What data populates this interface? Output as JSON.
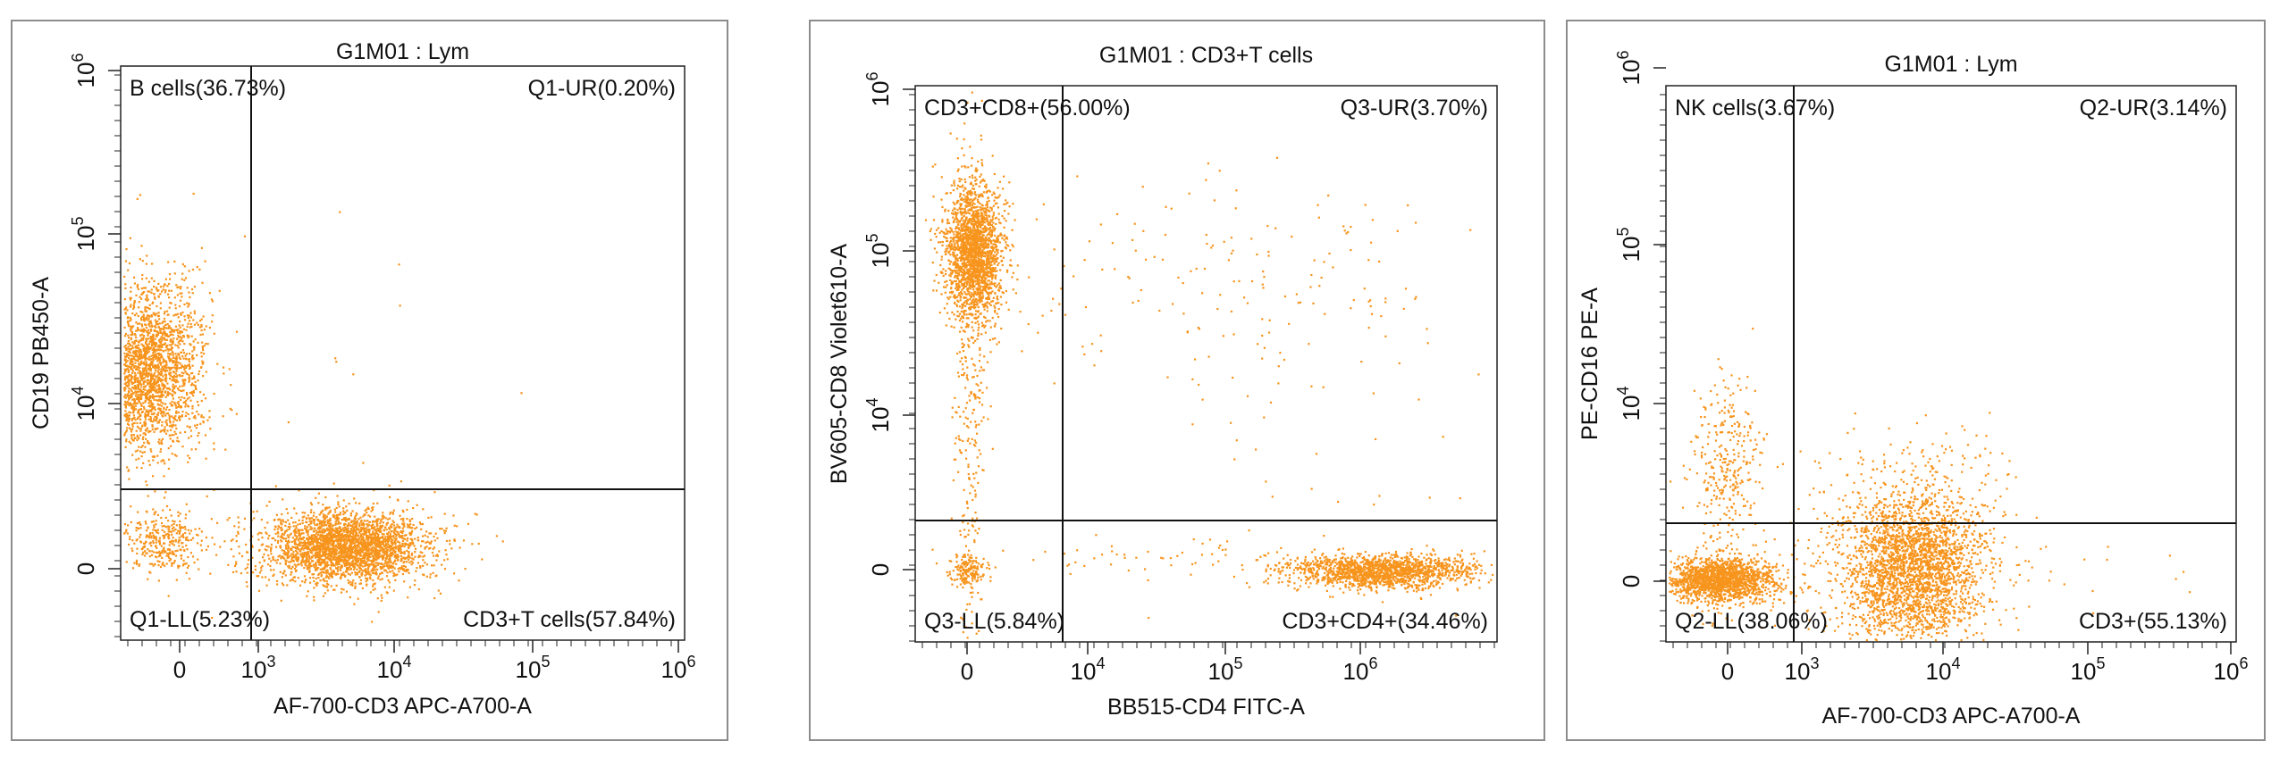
{
  "chart_data": [
    {
      "type": "scatter",
      "title": "G1M01 : Lym",
      "xlabel": "AF-700-CD3 APC-A700-A",
      "ylabel": "CD19 PB450-A",
      "x_ticks": [
        {
          "label": "0"
        },
        {
          "base": "10",
          "exp": "3"
        },
        {
          "base": "10",
          "exp": "4"
        },
        {
          "base": "10",
          "exp": "5"
        },
        {
          "base": "10",
          "exp": "6"
        }
      ],
      "y_ticks": [
        {
          "label": "0"
        },
        {
          "base": "10",
          "exp": "4"
        },
        {
          "base": "10",
          "exp": "5"
        },
        {
          "base": "10",
          "exp": "6"
        }
      ],
      "gates": {
        "x": 820,
        "y": 3000
      },
      "quadrants": {
        "ul": "B cells(36.73%)",
        "ur": "Q1-UR(0.20%)",
        "ll": "Q1-LL(5.23%)",
        "lr": "CD3+T cells(57.84%)"
      },
      "color": "#f7941d"
    },
    {
      "type": "scatter",
      "title": "G1M01 : CD3+T cells",
      "xlabel": "BB515-CD4 FITC-A",
      "ylabel": "BV605-CD8 Violet610-A",
      "x_ticks": [
        {
          "label": "0"
        },
        {
          "base": "10",
          "exp": "4"
        },
        {
          "base": "10",
          "exp": "5"
        },
        {
          "base": "10",
          "exp": "6"
        }
      ],
      "y_ticks": [
        {
          "label": "0"
        },
        {
          "base": "10",
          "exp": "4"
        },
        {
          "base": "10",
          "exp": "5"
        },
        {
          "base": "10",
          "exp": "6"
        }
      ],
      "gates": {
        "x": 5500,
        "y": 3000
      },
      "quadrants": {
        "ul": "CD3+CD8+(56.00%)",
        "ur": "Q3-UR(3.70%)",
        "ll": "Q3-LL(5.84%)",
        "lr": "CD3+CD4+(34.46%)"
      },
      "color": "#f7941d"
    },
    {
      "type": "scatter",
      "title": "G1M01 : Lym",
      "xlabel": "AF-700-CD3 APC-A700-A",
      "ylabel": "PE-CD16 PE-A",
      "x_ticks": [
        {
          "label": "0"
        },
        {
          "base": "10",
          "exp": "3"
        },
        {
          "base": "10",
          "exp": "4"
        },
        {
          "base": "10",
          "exp": "5"
        },
        {
          "base": "10",
          "exp": "6"
        }
      ],
      "y_ticks": [
        {
          "label": "0"
        },
        {
          "base": "10",
          "exp": "4"
        },
        {
          "base": "10",
          "exp": "5"
        },
        {
          "base": "10",
          "exp": "6"
        }
      ],
      "gates": {
        "x": 780,
        "y": 3000
      },
      "quadrants": {
        "ul": "NK cells(3.67%)",
        "ur": "Q2-UR(3.14%)",
        "ll": "Q2-LL(38.06%)",
        "lr": "CD3+(55.13%)"
      },
      "color": "#f7941d"
    }
  ]
}
